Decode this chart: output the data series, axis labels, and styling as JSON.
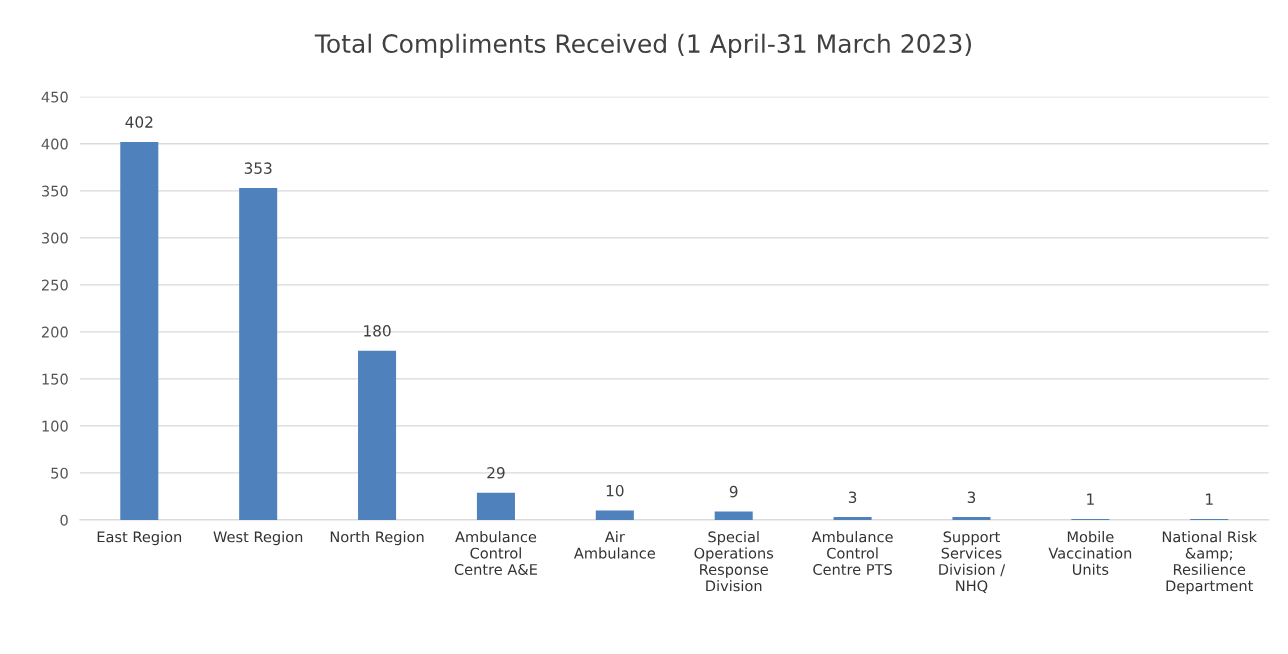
{
  "chart_data": {
    "type": "bar",
    "title": "Total Compliments Received (1 April-31 March 2023)",
    "categories": [
      "East Region",
      "West Region",
      "North Region",
      "Ambulance\nControl\nCentre A&E",
      "Air\nAmbulance",
      "Special\nOperations\nResponse\nDivision",
      "Ambulance\nControl\nCentre PTS",
      "Support\nServices\nDivision /\nNHQ",
      "Mobile\nVaccination\nUnits",
      "National Risk\n&amp;\nResilience\nDepartment"
    ],
    "values": [
      402,
      353,
      180,
      29,
      10,
      9,
      3,
      3,
      1,
      1
    ],
    "color": "#4f81bd",
    "ylim": [
      0,
      450
    ],
    "yticks": [
      0,
      50,
      100,
      150,
      200,
      250,
      300,
      350,
      400,
      450
    ],
    "grid": "y",
    "data_labels": true
  }
}
